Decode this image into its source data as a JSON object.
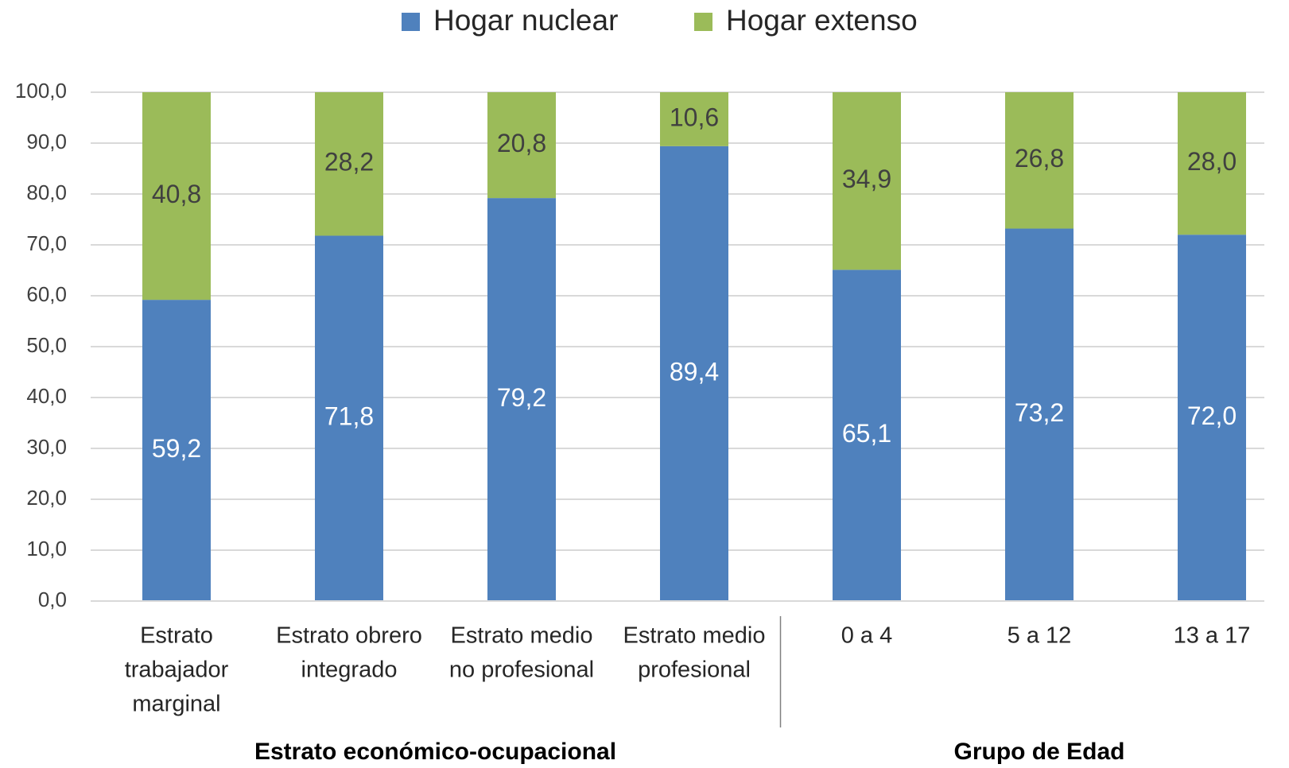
{
  "chart_data": {
    "type": "stacked-bar",
    "groups": [
      {
        "name": "Estrato económico-ocupacional",
        "categories": [
          [
            "Estrato",
            "trabajador",
            "marginal"
          ],
          [
            "Estrato obrero",
            "integrado"
          ],
          [
            "Estrato medio",
            "no profesional"
          ],
          [
            "Estrato medio",
            "profesional"
          ]
        ]
      },
      {
        "name": "Grupo de Edad",
        "categories": [
          [
            "0 a 4"
          ],
          [
            "5 a 12"
          ],
          [
            "13 a 17"
          ]
        ]
      }
    ],
    "series": [
      {
        "name": "Hogar nuclear",
        "color": "#4f81bd",
        "label_color": "#ffffff",
        "values": [
          59.2,
          71.8,
          79.2,
          89.4,
          65.1,
          73.2,
          72.0
        ],
        "value_labels": [
          "59,2",
          "71,8",
          "79,2",
          "89,4",
          "65,1",
          "73,2",
          "72,0"
        ]
      },
      {
        "name": "Hogar extenso",
        "color": "#9bbb59",
        "label_color": "#404040",
        "values": [
          40.8,
          28.2,
          20.8,
          10.6,
          34.9,
          26.8,
          28.0
        ],
        "value_labels": [
          "40,8",
          "28,2",
          "20,8",
          "10,6",
          "34,9",
          "26,8",
          "28,0"
        ]
      }
    ],
    "ylim": [
      0,
      100
    ],
    "yticks": [
      {
        "value": 0,
        "label": "0,0"
      },
      {
        "value": 10,
        "label": "10,0"
      },
      {
        "value": 20,
        "label": "20,0"
      },
      {
        "value": 30,
        "label": "30,0"
      },
      {
        "value": 40,
        "label": "40,0"
      },
      {
        "value": 50,
        "label": "50,0"
      },
      {
        "value": 60,
        "label": "60,0"
      },
      {
        "value": 70,
        "label": "70,0"
      },
      {
        "value": 80,
        "label": "80,0"
      },
      {
        "value": 90,
        "label": "90,0"
      },
      {
        "value": 100,
        "label": "100,0"
      }
    ],
    "grid": true,
    "legend": "top"
  }
}
